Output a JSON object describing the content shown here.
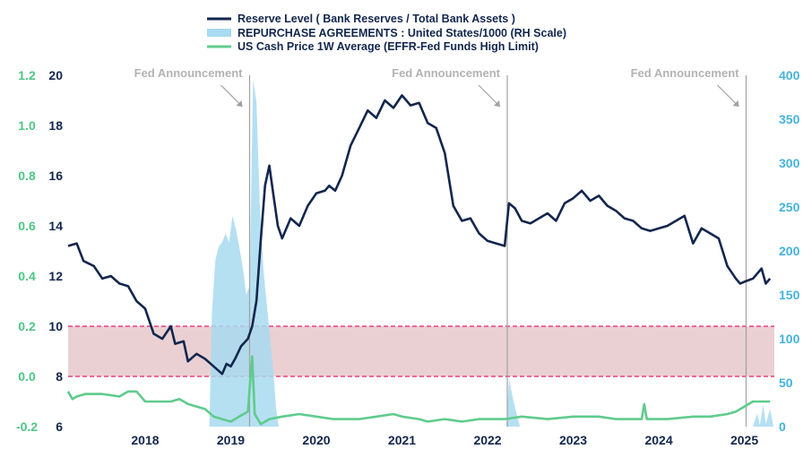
{
  "chart_data": {
    "type": "line",
    "legend": [
      {
        "label": "Reserve Level ( Bank Reserves / Total Bank Assets )",
        "color": "#12264d",
        "style": "line"
      },
      {
        "label": "REPURCHASE AGREEMENTS : United States/1000 (RH Scale)",
        "color": "#a8daf0",
        "style": "area"
      },
      {
        "label": "US Cash Price 1W Average (EFFR-Fed Funds High Limit)",
        "color": "#5fcb8c",
        "style": "line"
      }
    ],
    "legend_position": "top",
    "x_ticks": [
      "2018",
      "2019",
      "2020",
      "2021",
      "2022",
      "2023",
      "2024",
      "2025"
    ],
    "x_range": [
      2017.6,
      2025.85
    ],
    "left_axis": {
      "color": "#4fc585",
      "range": [
        -0.2,
        1.2
      ],
      "ticks": [
        "1.2",
        "1.0",
        "0.8",
        "0.6",
        "0.4",
        "0.2",
        "0.0",
        "-0.2"
      ]
    },
    "mid_axis": {
      "color": "#12264d",
      "range": [
        6,
        20
      ],
      "ticks": [
        "20",
        "18",
        "16",
        "14",
        "12",
        "10",
        "8",
        "6"
      ]
    },
    "right_axis": {
      "color": "#45b2dc",
      "range": [
        0,
        400
      ],
      "ticks": [
        "400",
        "350",
        "300",
        "250",
        "200",
        "150",
        "100",
        "50",
        "0"
      ]
    },
    "band": {
      "axis": "mid",
      "from": 8,
      "to": 10,
      "fill": "#ead0d2",
      "line_color": "#e0226e"
    },
    "annotations": [
      {
        "text": "Fed Announcement",
        "x": 2019.72
      },
      {
        "text": "Fed Announcement",
        "x": 2022.73
      },
      {
        "text": "Fed Announcement",
        "x": 2025.52
      }
    ],
    "series": [
      {
        "name": "Reserve Level ( Bank Reserves / Total Bank Assets )",
        "axis": "mid",
        "color": "#12264d",
        "points": [
          [
            2017.6,
            13.2
          ],
          [
            2017.7,
            13.3
          ],
          [
            2017.78,
            12.6
          ],
          [
            2017.9,
            12.4
          ],
          [
            2018.0,
            11.9
          ],
          [
            2018.1,
            12.0
          ],
          [
            2018.2,
            11.7
          ],
          [
            2018.3,
            11.6
          ],
          [
            2018.4,
            11.0
          ],
          [
            2018.5,
            10.7
          ],
          [
            2018.6,
            9.7
          ],
          [
            2018.7,
            9.5
          ],
          [
            2018.8,
            10.0
          ],
          [
            2018.85,
            9.3
          ],
          [
            2018.95,
            9.4
          ],
          [
            2019.0,
            8.6
          ],
          [
            2019.1,
            8.9
          ],
          [
            2019.2,
            8.7
          ],
          [
            2019.3,
            8.4
          ],
          [
            2019.4,
            8.1
          ],
          [
            2019.45,
            8.5
          ],
          [
            2019.5,
            8.4
          ],
          [
            2019.55,
            8.7
          ],
          [
            2019.62,
            9.2
          ],
          [
            2019.7,
            9.5
          ],
          [
            2019.75,
            10.0
          ],
          [
            2019.8,
            11.0
          ],
          [
            2019.85,
            13.4
          ],
          [
            2019.9,
            15.6
          ],
          [
            2019.95,
            16.4
          ],
          [
            2020.0,
            15.2
          ],
          [
            2020.05,
            14.0
          ],
          [
            2020.1,
            13.5
          ],
          [
            2020.2,
            14.3
          ],
          [
            2020.3,
            14.0
          ],
          [
            2020.4,
            14.8
          ],
          [
            2020.5,
            15.3
          ],
          [
            2020.6,
            15.4
          ],
          [
            2020.65,
            15.6
          ],
          [
            2020.72,
            15.4
          ],
          [
            2020.8,
            16.0
          ],
          [
            2020.9,
            17.2
          ],
          [
            2021.0,
            17.9
          ],
          [
            2021.1,
            18.6
          ],
          [
            2021.2,
            18.3
          ],
          [
            2021.3,
            19.0
          ],
          [
            2021.4,
            18.7
          ],
          [
            2021.5,
            19.2
          ],
          [
            2021.6,
            18.8
          ],
          [
            2021.7,
            18.9
          ],
          [
            2021.8,
            18.1
          ],
          [
            2021.9,
            17.9
          ],
          [
            2022.0,
            16.9
          ],
          [
            2022.1,
            14.8
          ],
          [
            2022.2,
            14.2
          ],
          [
            2022.3,
            14.3
          ],
          [
            2022.4,
            13.7
          ],
          [
            2022.5,
            13.4
          ],
          [
            2022.6,
            13.3
          ],
          [
            2022.7,
            13.2
          ],
          [
            2022.75,
            14.9
          ],
          [
            2022.82,
            14.7
          ],
          [
            2022.9,
            14.2
          ],
          [
            2023.0,
            14.1
          ],
          [
            2023.1,
            14.3
          ],
          [
            2023.2,
            14.5
          ],
          [
            2023.3,
            14.2
          ],
          [
            2023.4,
            14.9
          ],
          [
            2023.5,
            15.1
          ],
          [
            2023.6,
            15.4
          ],
          [
            2023.7,
            15.0
          ],
          [
            2023.8,
            15.2
          ],
          [
            2023.9,
            14.8
          ],
          [
            2024.0,
            14.6
          ],
          [
            2024.1,
            14.3
          ],
          [
            2024.2,
            14.2
          ],
          [
            2024.3,
            13.9
          ],
          [
            2024.4,
            13.8
          ],
          [
            2024.5,
            13.9
          ],
          [
            2024.6,
            14.0
          ],
          [
            2024.7,
            14.2
          ],
          [
            2024.8,
            14.4
          ],
          [
            2024.9,
            13.3
          ],
          [
            2025.0,
            13.9
          ],
          [
            2025.1,
            13.7
          ],
          [
            2025.2,
            13.5
          ],
          [
            2025.3,
            12.4
          ],
          [
            2025.4,
            11.9
          ],
          [
            2025.45,
            11.7
          ],
          [
            2025.52,
            11.8
          ],
          [
            2025.6,
            11.9
          ],
          [
            2025.7,
            12.3
          ],
          [
            2025.75,
            11.7
          ],
          [
            2025.8,
            11.9
          ]
        ]
      },
      {
        "name": "REPURCHASE AGREEMENTS : United States/1000 (RH Scale)",
        "axis": "right",
        "color": "#a8daf0",
        "points": [
          [
            2019.25,
            0
          ],
          [
            2019.28,
            130
          ],
          [
            2019.32,
            190
          ],
          [
            2019.36,
            205
          ],
          [
            2019.4,
            210
          ],
          [
            2019.44,
            220
          ],
          [
            2019.48,
            210
          ],
          [
            2019.52,
            240
          ],
          [
            2019.56,
            225
          ],
          [
            2019.6,
            205
          ],
          [
            2019.65,
            175
          ],
          [
            2019.68,
            150
          ],
          [
            2019.72,
            160
          ],
          [
            2019.76,
            395
          ],
          [
            2019.8,
            370
          ],
          [
            2019.84,
            250
          ],
          [
            2019.88,
            180
          ],
          [
            2019.92,
            140
          ],
          [
            2019.96,
            100
          ],
          [
            2020.0,
            60
          ],
          [
            2020.03,
            20
          ],
          [
            2020.06,
            0
          ],
          [
            2022.72,
            0
          ],
          [
            2022.75,
            55
          ],
          [
            2022.8,
            30
          ],
          [
            2022.85,
            10
          ],
          [
            2022.88,
            0
          ],
          [
            2025.6,
            0
          ],
          [
            2025.65,
            15
          ],
          [
            2025.68,
            2
          ],
          [
            2025.72,
            25
          ],
          [
            2025.75,
            3
          ],
          [
            2025.8,
            20
          ],
          [
            2025.84,
            0
          ]
        ]
      },
      {
        "name": "US Cash Price 1W Average (EFFR-Fed Funds High Limit)",
        "axis": "left",
        "color": "#5fcb8c",
        "points": [
          [
            2017.6,
            -0.06
          ],
          [
            2017.65,
            -0.09
          ],
          [
            2017.7,
            -0.08
          ],
          [
            2017.8,
            -0.07
          ],
          [
            2018.0,
            -0.07
          ],
          [
            2018.2,
            -0.08
          ],
          [
            2018.3,
            -0.06
          ],
          [
            2018.4,
            -0.06
          ],
          [
            2018.5,
            -0.1
          ],
          [
            2018.6,
            -0.1
          ],
          [
            2018.8,
            -0.1
          ],
          [
            2018.9,
            -0.09
          ],
          [
            2019.0,
            -0.11
          ],
          [
            2019.1,
            -0.12
          ],
          [
            2019.2,
            -0.13
          ],
          [
            2019.3,
            -0.16
          ],
          [
            2019.4,
            -0.17
          ],
          [
            2019.5,
            -0.18
          ],
          [
            2019.6,
            -0.16
          ],
          [
            2019.7,
            -0.14
          ],
          [
            2019.75,
            0.08
          ],
          [
            2019.78,
            -0.15
          ],
          [
            2019.85,
            -0.19
          ],
          [
            2019.95,
            -0.17
          ],
          [
            2020.1,
            -0.16
          ],
          [
            2020.3,
            -0.15
          ],
          [
            2020.5,
            -0.16
          ],
          [
            2020.7,
            -0.17
          ],
          [
            2021.0,
            -0.17
          ],
          [
            2021.2,
            -0.16
          ],
          [
            2021.4,
            -0.15
          ],
          [
            2021.5,
            -0.16
          ],
          [
            2021.7,
            -0.17
          ],
          [
            2021.8,
            -0.18
          ],
          [
            2022.0,
            -0.17
          ],
          [
            2022.2,
            -0.18
          ],
          [
            2022.4,
            -0.17
          ],
          [
            2022.7,
            -0.17
          ],
          [
            2022.9,
            -0.16
          ],
          [
            2023.2,
            -0.17
          ],
          [
            2023.5,
            -0.16
          ],
          [
            2023.8,
            -0.16
          ],
          [
            2024.0,
            -0.17
          ],
          [
            2024.2,
            -0.17
          ],
          [
            2024.3,
            -0.17
          ],
          [
            2024.33,
            -0.11
          ],
          [
            2024.36,
            -0.17
          ],
          [
            2024.6,
            -0.17
          ],
          [
            2024.9,
            -0.16
          ],
          [
            2025.1,
            -0.16
          ],
          [
            2025.3,
            -0.15
          ],
          [
            2025.4,
            -0.14
          ],
          [
            2025.5,
            -0.12
          ],
          [
            2025.55,
            -0.11
          ],
          [
            2025.6,
            -0.1
          ],
          [
            2025.8,
            -0.1
          ]
        ]
      }
    ]
  }
}
